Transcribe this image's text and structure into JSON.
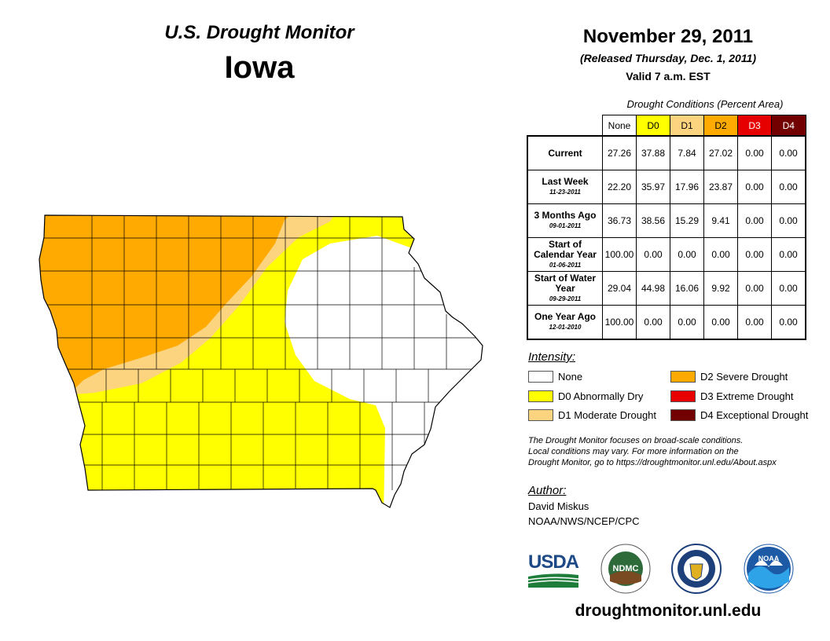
{
  "header": {
    "title": "U.S. Drought Monitor",
    "state": "Iowa",
    "date": "November 29, 2011",
    "released": "(Released Thursday, Dec. 1, 2011)",
    "valid": "Valid 7 a.m. EST"
  },
  "table": {
    "caption": "Drought Conditions (Percent Area)",
    "columns": [
      "None",
      "D0",
      "D1",
      "D2",
      "D3",
      "D4"
    ],
    "column_colors": [
      "#ffffff",
      "#ffff00",
      "#fcd37f",
      "#ffaa00",
      "#e60000",
      "#730000"
    ],
    "rows": [
      {
        "label": "Current",
        "sub": "",
        "values": [
          "27.26",
          "37.88",
          "7.84",
          "27.02",
          "0.00",
          "0.00"
        ]
      },
      {
        "label": "Last Week",
        "sub": "11-23-2011",
        "values": [
          "22.20",
          "35.97",
          "17.96",
          "23.87",
          "0.00",
          "0.00"
        ]
      },
      {
        "label": "3 Months Ago",
        "sub": "09-01-2011",
        "values": [
          "36.73",
          "38.56",
          "15.29",
          "9.41",
          "0.00",
          "0.00"
        ]
      },
      {
        "label": "Start of Calendar Year",
        "sub": "01-06-2011",
        "values": [
          "100.00",
          "0.00",
          "0.00",
          "0.00",
          "0.00",
          "0.00"
        ]
      },
      {
        "label": "Start of Water Year",
        "sub": "09-29-2011",
        "values": [
          "29.04",
          "44.98",
          "16.06",
          "9.92",
          "0.00",
          "0.00"
        ]
      },
      {
        "label": "One Year Ago",
        "sub": "12-01-2010",
        "values": [
          "100.00",
          "0.00",
          "0.00",
          "0.00",
          "0.00",
          "0.00"
        ]
      }
    ]
  },
  "legend": {
    "title": "Intensity:",
    "items": [
      {
        "label": "None",
        "color": "#ffffff"
      },
      {
        "label": "D0 Abnormally Dry",
        "color": "#ffff00"
      },
      {
        "label": "D1 Moderate Drought",
        "color": "#fcd37f"
      },
      {
        "label": "D2 Severe Drought",
        "color": "#ffaa00"
      },
      {
        "label": "D3 Extreme Drought",
        "color": "#e60000"
      },
      {
        "label": "D4 Exceptional Drought",
        "color": "#730000"
      }
    ]
  },
  "note": {
    "line1": "The Drought Monitor focuses on broad-scale conditions.",
    "line2": "Local conditions may vary. For more information on the",
    "line3": "Drought Monitor, go to https://droughtmonitor.unl.edu/About.aspx"
  },
  "author": {
    "title": "Author:",
    "name": "David Miskus",
    "org": "NOAA/NWS/NCEP/CPC"
  },
  "logos": {
    "usda": "USDA",
    "ndmc": "NDMC",
    "noaa": "NOAA"
  },
  "footer": {
    "url": "droughtmonitor.unl.edu"
  }
}
